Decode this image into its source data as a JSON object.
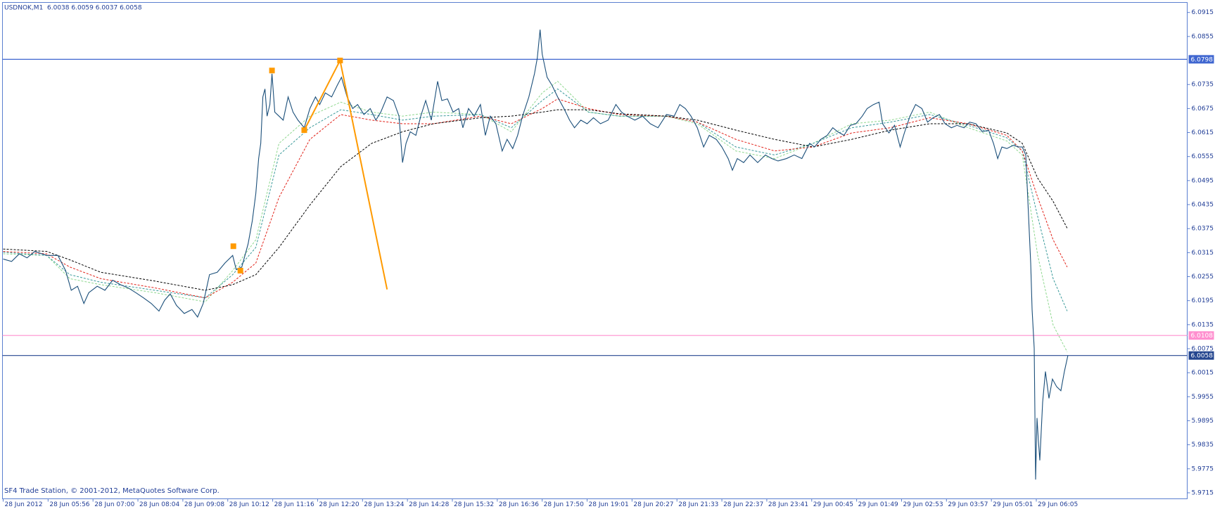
{
  "chart_data": {
    "type": "line",
    "title": "USDNOK,M1  6.0038 6.0059 6.0037 6.0058",
    "footer": "SF4 Trade Station, © 2001-2012, MetaQuotes Software Corp.",
    "xlim": [
      -1,
      1687
    ],
    "xticks": [
      {
        "value": 0,
        "label": "28 Jun 2012"
      },
      {
        "value": 64,
        "label": "28 Jun 05:56"
      },
      {
        "value": 128,
        "label": "28 Jun 07:00"
      },
      {
        "value": 192,
        "label": "28 Jun 08:04"
      },
      {
        "value": 256,
        "label": "28 Jun 09:08"
      },
      {
        "value": 320,
        "label": "28 Jun 10:12"
      },
      {
        "value": 384,
        "label": "28 Jun 11:16"
      },
      {
        "value": 448,
        "label": "28 Jun 12:20"
      },
      {
        "value": 512,
        "label": "28 Jun 13:24"
      },
      {
        "value": 576,
        "label": "28 Jun 14:28"
      },
      {
        "value": 640,
        "label": "28 Jun 15:32"
      },
      {
        "value": 704,
        "label": "28 Jun 16:36"
      },
      {
        "value": 768,
        "label": "28 Jun 17:50"
      },
      {
        "value": 832,
        "label": "28 Jun 19:01"
      },
      {
        "value": 896,
        "label": "28 Jun 20:27"
      },
      {
        "value": 960,
        "label": "28 Jun 21:33"
      },
      {
        "value": 1024,
        "label": "28 Jun 22:37"
      },
      {
        "value": 1088,
        "label": "28 Jun 23:41"
      },
      {
        "value": 1152,
        "label": "29 Jun 00:45"
      },
      {
        "value": 1216,
        "label": "29 Jun 01:49"
      },
      {
        "value": 1280,
        "label": "29 Jun 02:53"
      },
      {
        "value": 1344,
        "label": "29 Jun 03:57"
      },
      {
        "value": 1408,
        "label": "29 Jun 05:01"
      },
      {
        "value": 1472,
        "label": "29 Jun 06:05"
      }
    ],
    "ylim": [
      5.97,
      6.094
    ],
    "yticks": [
      6.0915,
      6.0855,
      6.0735,
      6.0675,
      6.0615,
      6.0555,
      6.0495,
      6.0435,
      6.0375,
      6.0315,
      6.0255,
      6.0195,
      6.0135,
      6.0075,
      6.0015,
      5.9955,
      5.9895,
      5.9835,
      5.9775,
      5.9715
    ],
    "grid": false,
    "series": [
      {
        "color": "#1b4f7a",
        "dashed": false,
        "x": [
          0,
          12,
          23,
          34,
          45,
          62,
          78,
          89,
          97,
          106,
          115,
          122,
          134,
          145,
          156,
          167,
          178,
          189,
          200,
          211,
          222,
          230,
          238,
          247,
          258,
          269,
          277,
          285,
          294,
          305,
          316,
          327,
          332,
          340,
          349,
          355,
          360,
          364,
          367,
          370,
          373,
          376,
          380,
          383,
          387,
          393,
          399,
          406,
          413,
          420,
          429,
          437,
          445,
          451,
          459,
          468,
          476,
          482,
          490,
          498,
          505,
          514,
          523,
          531,
          538,
          547,
          556,
          564,
          569,
          574,
          580,
          588,
          595,
          602,
          610,
          619,
          625,
          633,
          641,
          649,
          655,
          663,
          671,
          680,
          687,
          694,
          702,
          711,
          718,
          726,
          733,
          740,
          749,
          757,
          761,
          765,
          768,
          775,
          782,
          790,
          799,
          807,
          814,
          823,
          832,
          841,
          851,
          862,
          873,
          881,
          889,
          900,
          911,
          922,
          933,
          945,
          956,
          964,
          972,
          980,
          989,
          998,
          1006,
          1016,
          1024,
          1033,
          1039,
          1046,
          1055,
          1064,
          1075,
          1086,
          1095,
          1104,
          1116,
          1127,
          1138,
          1149,
          1156,
          1165,
          1174,
          1182,
          1189,
          1198,
          1207,
          1215,
          1224,
          1231,
          1240,
          1248,
          1253,
          1262,
          1270,
          1278,
          1284,
          1292,
          1300,
          1309,
          1317,
          1325,
          1334,
          1342,
          1351,
          1359,
          1369,
          1377,
          1386,
          1395,
          1404,
          1411,
          1417,
          1423,
          1430,
          1439,
          1447,
          1452,
          1457,
          1460,
          1464,
          1466,
          1469,
          1471,
          1473,
          1475,
          1477,
          1481,
          1485,
          1490,
          1495,
          1501,
          1507,
          1512,
          1517
        ],
        "values": [
          6.0299,
          6.0293,
          6.0312,
          6.0302,
          6.0318,
          6.0308,
          6.0308,
          6.027,
          6.0221,
          6.0231,
          6.0188,
          6.0215,
          6.0231,
          6.0221,
          6.0246,
          6.0235,
          6.0227,
          6.0215,
          6.0202,
          6.0188,
          6.0169,
          6.0196,
          6.0212,
          6.0183,
          6.0163,
          6.0173,
          6.0154,
          6.0188,
          6.026,
          6.0266,
          6.0289,
          6.0308,
          6.0273,
          6.0279,
          6.0337,
          6.0395,
          6.0463,
          6.055,
          6.0588,
          6.0704,
          6.0724,
          6.0656,
          6.0685,
          6.0762,
          6.0666,
          6.0656,
          6.0646,
          6.0704,
          6.0666,
          6.0646,
          6.0627,
          6.0675,
          6.0704,
          6.0685,
          6.0714,
          6.0704,
          6.0733,
          6.0753,
          6.0704,
          6.0675,
          6.0685,
          6.066,
          6.0675,
          6.0646,
          6.0666,
          6.0704,
          6.0695,
          6.0656,
          6.054,
          6.0588,
          6.0617,
          6.0608,
          6.0656,
          6.0695,
          6.0646,
          6.0743,
          6.0695,
          6.0699,
          6.0666,
          6.0675,
          6.0627,
          6.0675,
          6.0656,
          6.0685,
          6.0608,
          6.0656,
          6.0637,
          6.0569,
          6.0598,
          6.0575,
          6.0608,
          6.0656,
          6.0704,
          6.0762,
          6.0801,
          6.0872,
          6.0811,
          6.0753,
          6.0733,
          6.0704,
          6.0675,
          6.0646,
          6.0627,
          6.0646,
          6.0637,
          6.0652,
          6.0637,
          6.0646,
          6.0685,
          6.0666,
          6.0656,
          6.0646,
          6.0656,
          6.0637,
          6.0627,
          6.066,
          6.0656,
          6.0685,
          6.0675,
          6.0656,
          6.0627,
          6.0579,
          6.0608,
          6.0598,
          6.0579,
          6.055,
          6.0521,
          6.055,
          6.054,
          6.0559,
          6.054,
          6.0559,
          6.055,
          6.0544,
          6.055,
          6.0559,
          6.055,
          6.0588,
          6.0579,
          6.0598,
          6.0608,
          6.0627,
          6.0617,
          6.0608,
          6.0633,
          6.0637,
          6.0656,
          6.0675,
          6.0685,
          6.0691,
          6.0637,
          6.0614,
          6.0633,
          6.0579,
          6.0614,
          6.0656,
          6.0685,
          6.0675,
          6.0641,
          6.0652,
          6.066,
          6.0637,
          6.0627,
          6.0633,
          6.0627,
          6.0641,
          6.0637,
          6.0617,
          6.0621,
          6.0588,
          6.055,
          6.0579,
          6.0575,
          6.0583,
          6.0579,
          6.0579,
          6.0559,
          6.0443,
          6.0289,
          6.0173,
          6.0076,
          5.9748,
          5.9902,
          5.9844,
          5.9796,
          5.9941,
          6.0018,
          5.9951,
          5.9999,
          5.998,
          5.997,
          6.0018,
          6.0058
        ]
      },
      {
        "color": "#000000",
        "dashed": true,
        "x": [
          0,
          62,
          95,
          139,
          216,
          288,
          327,
          360,
          393,
          437,
          481,
          525,
          569,
          613,
          680,
          724,
          768,
          790,
          834,
          878,
          945,
          989,
          1044,
          1099,
          1154,
          1209,
          1264,
          1320,
          1375,
          1430,
          1452,
          1474,
          1496,
          1516
        ],
        "values": [
          6.0324,
          6.0318,
          6.0297,
          6.0266,
          6.0244,
          6.0221,
          6.0235,
          6.026,
          6.0328,
          6.0434,
          6.053,
          6.0588,
          6.0617,
          6.0637,
          6.0652,
          6.0656,
          6.0666,
          6.0672,
          6.0672,
          6.0662,
          6.0656,
          6.0646,
          6.0621,
          6.0598,
          6.0579,
          6.0598,
          6.0621,
          6.0637,
          6.0637,
          6.0614,
          6.0588,
          6.0501,
          6.0443,
          6.0376
        ]
      },
      {
        "color": "#e2231a",
        "dashed": true,
        "x": [
          0,
          62,
          95,
          139,
          216,
          288,
          327,
          360,
          393,
          437,
          481,
          525,
          569,
          613,
          680,
          724,
          768,
          790,
          834,
          878,
          945,
          989,
          1044,
          1099,
          1154,
          1209,
          1264,
          1320,
          1375,
          1430,
          1452,
          1474,
          1496,
          1516
        ],
        "values": [
          6.0318,
          6.0312,
          6.0279,
          6.025,
          6.0227,
          6.0202,
          6.0241,
          6.0289,
          6.0453,
          6.0598,
          6.066,
          6.0646,
          6.0637,
          6.0637,
          6.0656,
          6.0637,
          6.0675,
          6.0699,
          6.0675,
          6.066,
          6.0656,
          6.0641,
          6.0598,
          6.0569,
          6.0579,
          6.0614,
          6.0627,
          6.0652,
          6.0637,
          6.0608,
          6.0569,
          6.0453,
          6.0347,
          6.0279
        ]
      },
      {
        "color": "#3a9a9a",
        "dashed": true,
        "x": [
          0,
          62,
          95,
          139,
          216,
          288,
          327,
          360,
          393,
          437,
          481,
          525,
          569,
          613,
          680,
          724,
          768,
          790,
          834,
          878,
          945,
          989,
          1044,
          1099,
          1154,
          1209,
          1264,
          1320,
          1375,
          1430,
          1452,
          1474,
          1496,
          1516
        ],
        "values": [
          6.0316,
          6.0308,
          6.026,
          6.0241,
          6.0221,
          6.0202,
          6.026,
          6.0328,
          6.0559,
          6.0627,
          6.0672,
          6.066,
          6.0646,
          6.0656,
          6.066,
          6.0627,
          6.0695,
          6.0724,
          6.0666,
          6.0656,
          6.0656,
          6.0641,
          6.0579,
          6.0559,
          6.0588,
          6.0627,
          6.0641,
          6.066,
          6.0633,
          6.0602,
          6.0569,
          6.0405,
          6.025,
          6.0169
        ]
      },
      {
        "color": "#8fd88f",
        "dashed": true,
        "x": [
          0,
          62,
          95,
          139,
          216,
          288,
          327,
          360,
          393,
          437,
          481,
          525,
          569,
          613,
          680,
          724,
          768,
          790,
          834,
          878,
          945,
          989,
          1044,
          1099,
          1154,
          1209,
          1264,
          1320,
          1375,
          1430,
          1452,
          1474,
          1496,
          1516
        ],
        "values": [
          6.0312,
          6.0308,
          6.025,
          6.0235,
          6.0215,
          6.0192,
          6.027,
          6.0347,
          6.0588,
          6.0656,
          6.0691,
          6.0666,
          6.0656,
          6.0666,
          6.066,
          6.0617,
          6.0714,
          6.0743,
          6.0666,
          6.0656,
          6.0656,
          6.0637,
          6.0569,
          6.055,
          6.0588,
          6.0637,
          6.0646,
          6.0666,
          6.0627,
          6.0594,
          6.0559,
          6.0308,
          6.0134,
          6.0067
        ]
      }
    ],
    "hlines": [
      {
        "value": 6.0798,
        "color": "#3f66d0",
        "label_color": "#3f66d0"
      },
      {
        "value": 6.0108,
        "color": "#ff8fcf",
        "label_color": "#ff8fcf"
      },
      {
        "value": 6.0058,
        "color": "#24468f",
        "label_color": "#24468f"
      }
    ],
    "drawing": {
      "color": "#ff9a00",
      "x": [
        429,
        480,
        547
      ],
      "values": [
        6.0621,
        6.0795,
        6.0223
      ],
      "markers": {
        "x": [
          328,
          338,
          383,
          429,
          480
        ],
        "values": [
          6.0331,
          6.027,
          6.077,
          6.0621,
          6.0795
        ]
      }
    }
  }
}
